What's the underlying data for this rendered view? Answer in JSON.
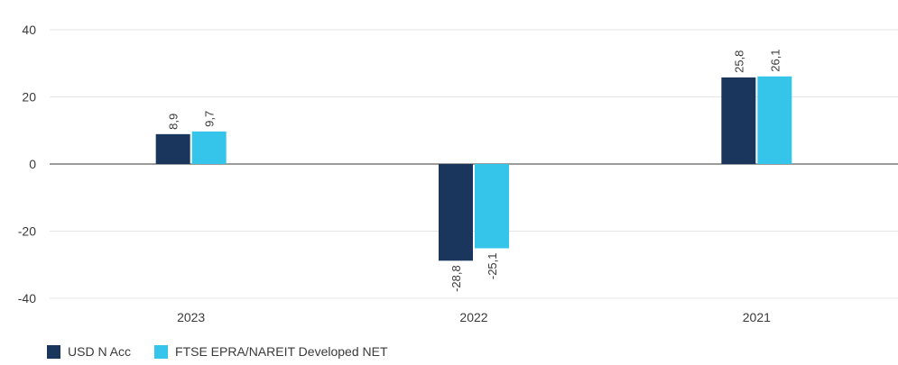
{
  "chart_data": {
    "type": "bar",
    "categories": [
      "2023",
      "2022",
      "2021"
    ],
    "series": [
      {
        "name": "USD N Acc",
        "values": [
          8.9,
          -28.8,
          25.8
        ],
        "labels": [
          "8,9",
          "-28,8",
          "25,8"
        ],
        "color": "#1b365d"
      },
      {
        "name": "FTSE EPRA/NAREIT Developed NET",
        "values": [
          9.7,
          -25.1,
          26.1
        ],
        "labels": [
          "9,7",
          "-25,1",
          "26,1"
        ],
        "color": "#36c5ea"
      }
    ],
    "ylim": [
      -40,
      40
    ],
    "yticks": [
      40,
      20,
      0,
      -20,
      -40
    ],
    "grid": true,
    "legend_position": "bottom-left",
    "title": "",
    "xlabel": "",
    "ylabel": ""
  }
}
